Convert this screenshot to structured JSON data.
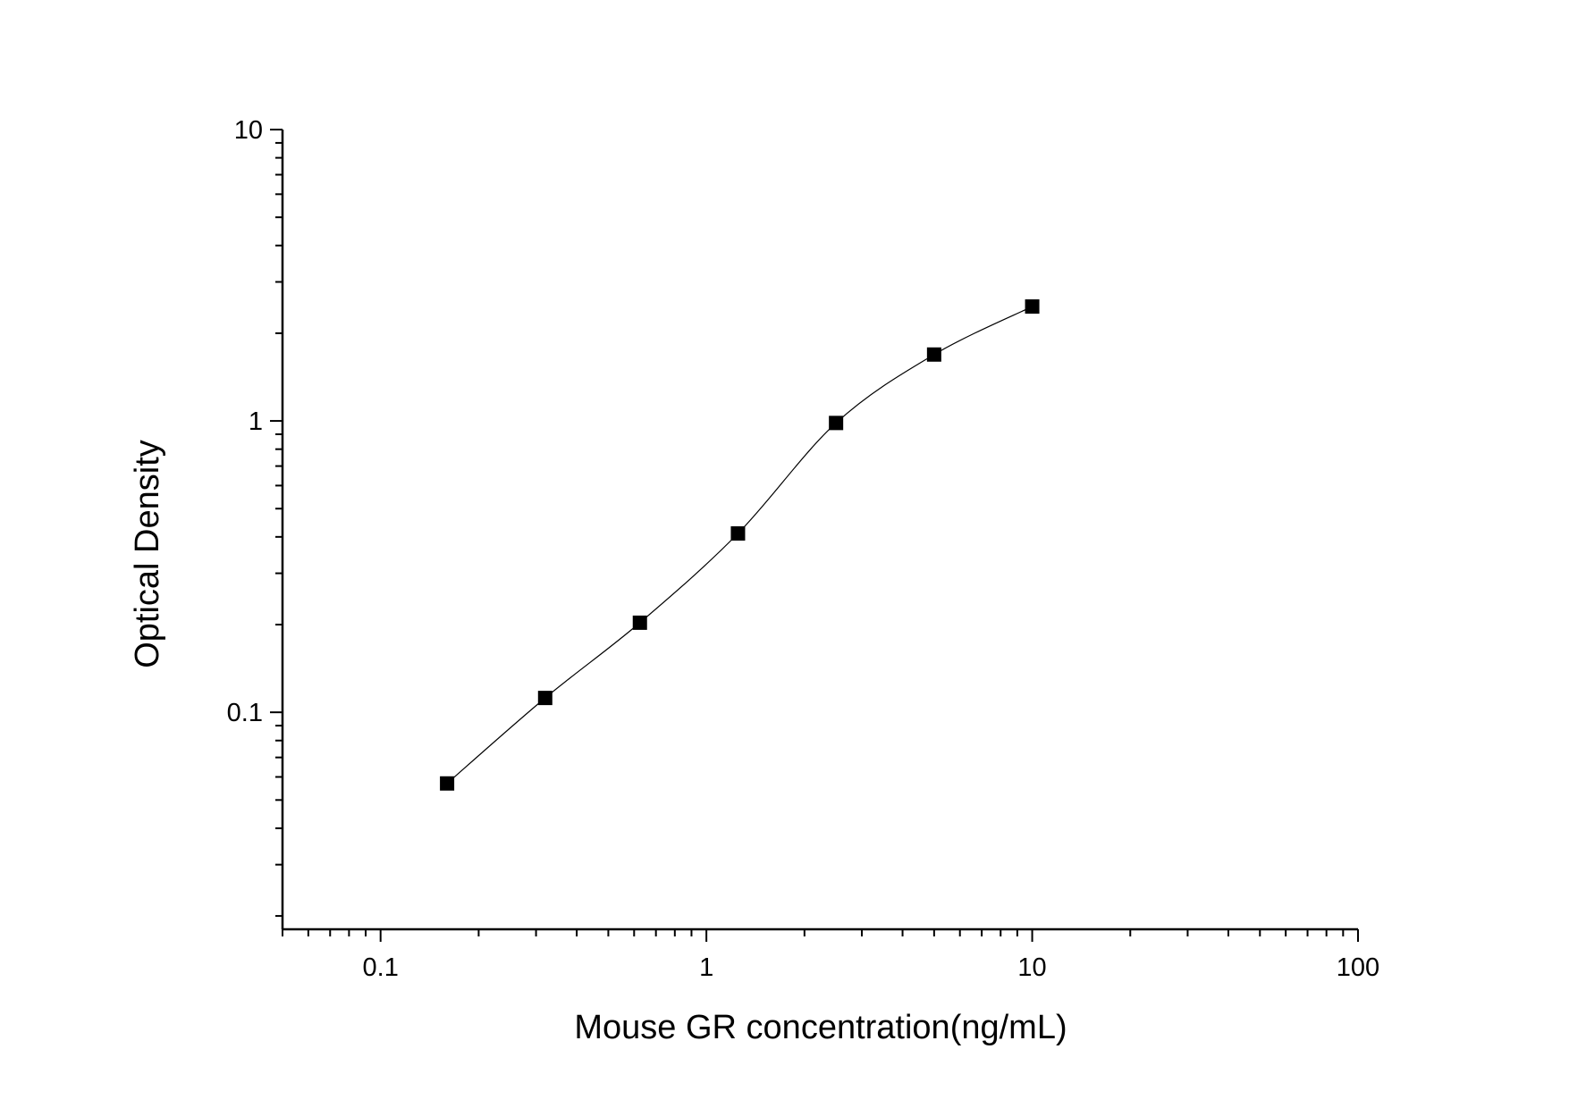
{
  "chart_data": {
    "type": "scatter",
    "title": "",
    "xlabel": "Mouse GR concentration(ng/mL)",
    "ylabel": "Optical Density",
    "x_scale": "log",
    "y_scale": "log",
    "xlim": [
      0.05,
      100
    ],
    "ylim": [
      0.018,
      10
    ],
    "x_ticks": [
      {
        "v": 0.1,
        "label": "0.1"
      },
      {
        "v": 1,
        "label": "1"
      },
      {
        "v": 10,
        "label": "10"
      },
      {
        "v": 100,
        "label": "100"
      }
    ],
    "y_ticks": [
      {
        "v": 0.1,
        "label": "0.1"
      },
      {
        "v": 1,
        "label": "1"
      },
      {
        "v": 10,
        "label": "10"
      }
    ],
    "grid": false,
    "marker": "square",
    "color": "#000000",
    "fit_curve": true,
    "x": [
      0.16,
      0.32,
      0.625,
      1.25,
      2.5,
      5,
      10
    ],
    "y": [
      0.057,
      0.112,
      0.203,
      0.411,
      0.984,
      1.69,
      2.47
    ]
  }
}
